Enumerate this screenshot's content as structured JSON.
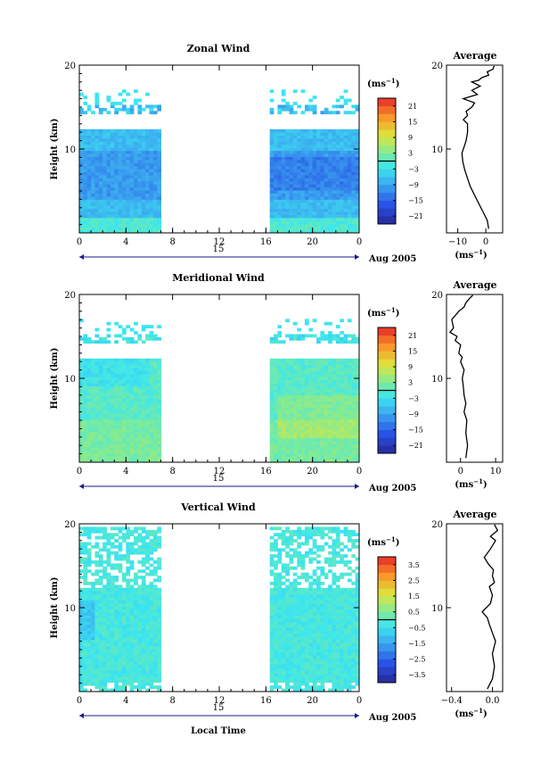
{
  "chart_data": [
    {
      "type": "heatmap",
      "title": "Zonal Wind",
      "ylabel": "Height (km)",
      "xlim": [
        0,
        24
      ],
      "ylim": [
        0,
        20
      ],
      "x_ticks": [
        "0",
        "4",
        "8",
        "12",
        "16",
        "20",
        "0"
      ],
      "y_ticks": [
        "10",
        "20"
      ],
      "day_label": "15",
      "date_label": "Aug 2005",
      "colorbar": {
        "unit": "(ms",
        "unit_exp": "−1",
        "unit_close": ")",
        "ticks": [
          "21",
          "15",
          "9",
          "3",
          "−3",
          "−9",
          "−15",
          "−21"
        ],
        "range": [
          -24,
          24
        ]
      },
      "data_gaps_local_time": [
        [
          7,
          16.5
        ]
      ],
      "palette_note": "blue-cyan dominated, stronger blue near 5-9 km"
    },
    {
      "type": "line",
      "title": "Average",
      "xlabel": "(ms",
      "xlabel_exp": "−1",
      "xlabel_close": ")",
      "x_ticks": [
        "−10",
        "0"
      ],
      "xlim": [
        -14,
        6
      ],
      "y_ticks": [
        "10",
        "20"
      ],
      "ylim": [
        0,
        20
      ],
      "x": [
        1.0,
        0.5,
        -1.0,
        -2.5,
        -4.0,
        -5.5,
        -6.5,
        -7.5,
        -8.2,
        -8.5,
        -7.5,
        -7.0,
        -6.5,
        -6.5,
        -8.0,
        -6.5,
        -7.0,
        -5.0,
        -4.0,
        -8.0,
        -3.0,
        -5.0,
        -2.0,
        -5.0,
        -2.5,
        -1.5,
        1.0,
        0.5,
        2.5,
        3.0
      ],
      "y": [
        0.5,
        1.5,
        2.5,
        3.5,
        4.5,
        5.5,
        6.5,
        7.5,
        8.5,
        9.5,
        10.5,
        11.0,
        12.0,
        13.0,
        13.5,
        14.0,
        14.5,
        15.0,
        15.5,
        16.0,
        16.5,
        17.0,
        17.5,
        18.0,
        18.2,
        18.5,
        18.8,
        19.2,
        19.5,
        19.9
      ]
    },
    {
      "type": "heatmap",
      "title": "Meridional Wind",
      "ylabel": "Height (km)",
      "xlim": [
        0,
        24
      ],
      "ylim": [
        0,
        20
      ],
      "x_ticks": [
        "0",
        "4",
        "8",
        "12",
        "16",
        "20",
        "0"
      ],
      "y_ticks": [
        "10",
        "20"
      ],
      "day_label": "15",
      "date_label": "Aug 2005",
      "colorbar": {
        "unit": "(ms",
        "unit_exp": "−1",
        "unit_close": ")",
        "ticks": [
          "21",
          "15",
          "9",
          "3",
          "−3",
          "−9",
          "−15",
          "−21"
        ],
        "range": [
          -24,
          24
        ]
      },
      "data_gaps_local_time": [
        [
          7,
          16.5
        ]
      ],
      "palette_note": "cyan-green dominated, near zero with weak positives"
    },
    {
      "type": "line",
      "title": "Average",
      "xlabel": "(ms",
      "xlabel_exp": "−1",
      "xlabel_close": ")",
      "x_ticks": [
        "0",
        "10"
      ],
      "xlim": [
        -4,
        12
      ],
      "y_ticks": [
        "10",
        "20"
      ],
      "ylim": [
        0,
        20
      ],
      "x": [
        1.5,
        2.0,
        1.5,
        1.8,
        1.0,
        1.5,
        1.0,
        0.8,
        0.5,
        1.0,
        0.0,
        0.5,
        -0.5,
        0.0,
        -1.5,
        -1.0,
        -3.0,
        -2.0,
        -2.5,
        -0.5,
        1.0,
        1.5,
        2.5,
        3.5
      ],
      "y": [
        0.5,
        2.0,
        3.5,
        5.0,
        6.0,
        7.0,
        8.0,
        9.0,
        10.0,
        11.0,
        12.0,
        12.5,
        13.0,
        14.0,
        14.5,
        15.0,
        15.5,
        16.0,
        17.0,
        18.0,
        18.5,
        19.0,
        19.5,
        19.9
      ]
    },
    {
      "type": "heatmap",
      "title": "Vertical Wind",
      "ylabel": "Height (km)",
      "xlabel": "Local Time",
      "xlim": [
        0,
        24
      ],
      "ylim": [
        0,
        20
      ],
      "x_ticks": [
        "0",
        "4",
        "8",
        "12",
        "16",
        "20",
        "0"
      ],
      "y_ticks": [
        "10",
        "20"
      ],
      "day_label": "15",
      "date_label": "Aug 2005",
      "colorbar": {
        "unit": "(ms",
        "unit_exp": "−1",
        "unit_close": ")",
        "ticks": [
          "3.5",
          "2.5",
          "1.5",
          "0.5",
          "−0.5",
          "−1.5",
          "−2.5",
          "−3.5"
        ],
        "range": [
          -4,
          4
        ]
      },
      "data_gaps_local_time": [
        [
          7,
          16.5
        ]
      ],
      "palette_note": "light cyan-green, near zero"
    },
    {
      "type": "line",
      "title": "Average",
      "xlabel": "(ms",
      "xlabel_exp": "−1",
      "xlabel_close": ")",
      "x_ticks": [
        "−0.4",
        "0.0"
      ],
      "xlim": [
        -0.45,
        0.1
      ],
      "y_ticks": [
        "10",
        "20"
      ],
      "ylim": [
        0,
        20
      ],
      "x": [
        -0.05,
        0.0,
        0.02,
        0.0,
        0.03,
        0.0,
        -0.03,
        -0.05,
        -0.1,
        -0.02,
        0.0,
        -0.03,
        0.02,
        0.0,
        0.01,
        -0.04,
        -0.08,
        -0.02,
        0.03,
        -0.02,
        0.05,
        0.02
      ],
      "y": [
        0.3,
        1.5,
        3.0,
        4.5,
        6.0,
        7.0,
        8.0,
        8.8,
        9.5,
        10.5,
        11.5,
        12.5,
        13.0,
        13.8,
        14.5,
        15.2,
        16.0,
        17.0,
        18.0,
        18.5,
        19.2,
        19.9
      ]
    }
  ]
}
